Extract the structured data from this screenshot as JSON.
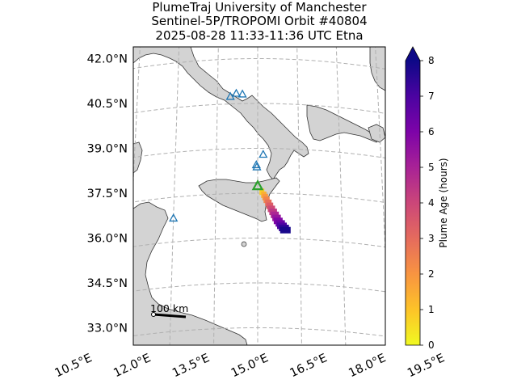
{
  "chart_data": {
    "type": "scatter",
    "title_lines": [
      "PlumeTraj    University of Manchester",
      "Sentinel-5P/TROPOMI Orbit #40804",
      "2025-08-28   11:33-11:36 UTC   Etna"
    ],
    "lat_tick_labels": [
      "42.0°N",
      "40.5°N",
      "39.0°N",
      "37.5°N",
      "36.0°N",
      "34.5°N",
      "33.0°N"
    ],
    "lat_tick_values": [
      42.0,
      40.5,
      39.0,
      37.5,
      36.0,
      34.5,
      33.0
    ],
    "lon_tick_labels": [
      "10.5°E",
      "12.0°E",
      "13.5°E",
      "15.0°E",
      "16.5°E",
      "18.0°E",
      "19.5°E"
    ],
    "lon_tick_values": [
      10.5,
      12.0,
      13.5,
      15.0,
      16.5,
      18.0,
      19.5
    ],
    "lon_range": [
      10.5,
      20.0
    ],
    "lat_range": [
      32.5,
      42.5
    ],
    "grid": true,
    "colorbar": {
      "label": "Plume Age (hours)",
      "range": [
        0,
        8
      ],
      "ticks": [
        "0",
        "1",
        "2",
        "3",
        "4",
        "5",
        "6",
        "7",
        "8"
      ],
      "colormap": "plasma_r",
      "extend": "max"
    },
    "source_volcano": {
      "name": "Etna",
      "lon": 15.0,
      "lat": 37.75,
      "color": "#2ca02c"
    },
    "other_volcanoes": [
      {
        "lon": 14.43,
        "lat": 40.82
      },
      {
        "lon": 14.2,
        "lat": 40.85
      },
      {
        "lon": 13.98,
        "lat": 40.75
      },
      {
        "lon": 15.2,
        "lat": 38.8
      },
      {
        "lon": 14.95,
        "lat": 38.45
      },
      {
        "lon": 14.97,
        "lat": 38.38
      },
      {
        "lon": 12.0,
        "lat": 36.8
      }
    ],
    "plume_points": [
      {
        "lon": 15.15,
        "lat": 37.55,
        "age": 0.8
      },
      {
        "lon": 15.22,
        "lat": 37.45,
        "age": 1.4
      },
      {
        "lon": 15.27,
        "lat": 37.37,
        "age": 1.9
      },
      {
        "lon": 15.32,
        "lat": 37.28,
        "age": 2.4
      },
      {
        "lon": 15.38,
        "lat": 37.18,
        "age": 2.9
      },
      {
        "lon": 15.43,
        "lat": 37.08,
        "age": 3.4
      },
      {
        "lon": 15.49,
        "lat": 36.98,
        "age": 3.9
      },
      {
        "lon": 15.55,
        "lat": 36.88,
        "age": 4.4
      },
      {
        "lon": 15.61,
        "lat": 36.78,
        "age": 4.9
      },
      {
        "lon": 15.67,
        "lat": 36.68,
        "age": 5.4
      },
      {
        "lon": 15.73,
        "lat": 36.58,
        "age": 5.9
      },
      {
        "lon": 15.8,
        "lat": 36.5,
        "age": 6.4
      },
      {
        "lon": 15.86,
        "lat": 36.42,
        "age": 6.9
      },
      {
        "lon": 15.93,
        "lat": 36.35,
        "age": 7.4
      },
      {
        "lon": 15.98,
        "lat": 36.28,
        "age": 7.8
      }
    ],
    "scale_bar": {
      "label": "100 km"
    },
    "colors": {
      "land": "#d3d3d3",
      "ocean": "#ffffff",
      "volcano_marker": "#1f77b4",
      "grid": "#b0b0b0"
    }
  }
}
